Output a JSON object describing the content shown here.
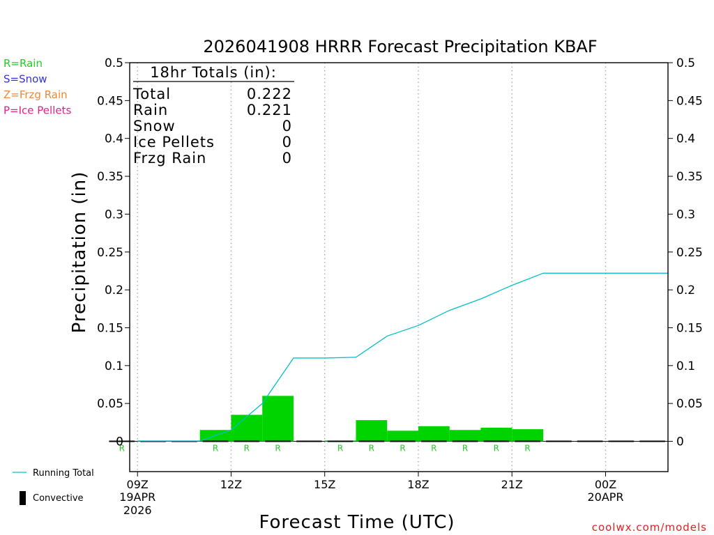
{
  "chart_data": {
    "type": "bar",
    "title": "2026041908 HRRR Forecast Precipitation KBAF",
    "xlabel": "Forecast Time (UTC)",
    "ylabel": "Precipitation (in)",
    "ylim": [
      -0.04,
      0.5
    ],
    "yticks": [
      "0",
      "0.05",
      "0.1",
      "0.15",
      "0.2",
      "0.25",
      "0.3",
      "0.35",
      "0.4",
      "0.45",
      "0.5"
    ],
    "xlim": [
      "2026-04-19 08:45Z",
      "2026-04-20 02:00Z"
    ],
    "xticks": [
      {
        "time": "2026-04-19 09Z",
        "label": "09Z",
        "sub1": "19APR",
        "sub2": "2026"
      },
      {
        "time": "2026-04-19 12Z",
        "label": "12Z",
        "sub1": "",
        "sub2": ""
      },
      {
        "time": "2026-04-19 15Z",
        "label": "15Z",
        "sub1": "",
        "sub2": ""
      },
      {
        "time": "2026-04-19 18Z",
        "label": "18Z",
        "sub1": "",
        "sub2": ""
      },
      {
        "time": "2026-04-19 21Z",
        "label": "21Z",
        "sub1": "",
        "sub2": ""
      },
      {
        "time": "2026-04-20 00Z",
        "label": "00Z",
        "sub1": "20APR",
        "sub2": ""
      }
    ],
    "grid": "vertical dotted at tick times",
    "hourly_precip": {
      "valid_hours": [
        "2026-04-19 09Z",
        "2026-04-19 10Z",
        "2026-04-19 11Z",
        "2026-04-19 12Z",
        "2026-04-19 13Z",
        "2026-04-19 14Z",
        "2026-04-19 15Z",
        "2026-04-19 16Z",
        "2026-04-19 17Z",
        "2026-04-19 18Z",
        "2026-04-19 19Z",
        "2026-04-19 20Z",
        "2026-04-19 21Z",
        "2026-04-19 22Z",
        "2026-04-19 23Z",
        "2026-04-20 00Z",
        "2026-04-20 01Z",
        "2026-04-20 02Z"
      ],
      "values": [
        0.0005,
        0.0,
        0.0,
        0.015,
        0.035,
        0.06,
        0.0,
        0.001,
        0.028,
        0.014,
        0.02,
        0.015,
        0.018,
        0.016,
        0.0,
        0.0,
        0.0,
        0.0
      ],
      "ptype": [
        "R",
        "",
        "",
        "R",
        "R",
        "R",
        "",
        "R",
        "R",
        "R",
        "R",
        "R",
        "R",
        "R",
        "",
        "",
        "",
        ""
      ],
      "color": "#00d400"
    },
    "running_total": {
      "name": "Running Total",
      "color": "#00c0c8",
      "times": [
        "2026-04-19 09Z",
        "2026-04-19 10Z",
        "2026-04-19 11Z",
        "2026-04-19 12Z",
        "2026-04-19 13Z",
        "2026-04-19 14Z",
        "2026-04-19 15Z",
        "2026-04-19 16Z",
        "2026-04-19 17Z",
        "2026-04-19 18Z",
        "2026-04-19 19Z",
        "2026-04-19 20Z",
        "2026-04-19 21Z",
        "2026-04-19 22Z",
        "2026-04-19 23Z",
        "2026-04-20 00Z",
        "2026-04-20 01Z",
        "2026-04-20 02Z"
      ],
      "values": [
        0.0005,
        0.0005,
        0.0005,
        0.015,
        0.05,
        0.11,
        0.11,
        0.111,
        0.139,
        0.153,
        0.173,
        0.188,
        0.206,
        0.222,
        0.222,
        0.222,
        0.222,
        0.222
      ]
    },
    "totals_box": {
      "heading": "18hr Totals (in):",
      "rows": [
        {
          "label": "Total",
          "value": "0.222"
        },
        {
          "label": "Rain",
          "value": "0.221"
        },
        {
          "label": "Snow",
          "value": "0"
        },
        {
          "label": "Ice Pellets",
          "value": "0"
        },
        {
          "label": "Frzg Rain",
          "value": "0"
        }
      ]
    },
    "ptype_legend": [
      {
        "text": "R=Rain",
        "color": "#22cc22"
      },
      {
        "text": "S=Snow",
        "color": "#3333dd"
      },
      {
        "text": "Z=Frzg Rain",
        "color": "#ee8833"
      },
      {
        "text": "P=Ice Pellets",
        "color": "#dd2288"
      }
    ],
    "key": [
      {
        "text": "Running Total",
        "symbol": "line",
        "color": "#00c0c8"
      },
      {
        "text": "Convective",
        "symbol": "bar",
        "color": "#000000"
      }
    ],
    "credit": "coolwx.com/models"
  }
}
